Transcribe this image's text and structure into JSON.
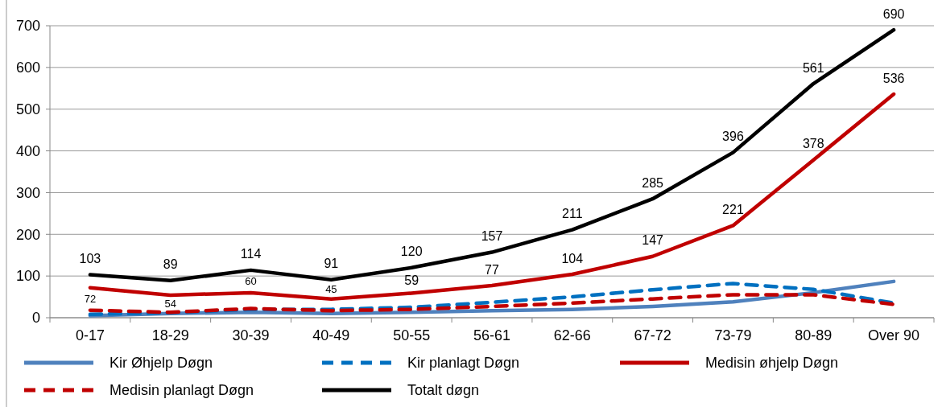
{
  "chart_data": {
    "type": "line",
    "categories": [
      "0-17",
      "18-29",
      "30-39",
      "40-49",
      "50-55",
      "56-61",
      "62-66",
      "67-72",
      "73-79",
      "80-89",
      "Over 90"
    ],
    "ylim": [
      0,
      700
    ],
    "yticks": [
      0,
      100,
      200,
      300,
      400,
      500,
      600,
      700
    ],
    "grid": "y",
    "legend": "bottom",
    "series": [
      {
        "name": "Kir Øhjelp Døgn",
        "color": "#4f81bd",
        "line_style": "solid",
        "values": [
          5,
          10,
          13,
          10,
          13,
          17,
          20,
          27,
          38,
          60,
          87
        ]
      },
      {
        "name": "Kir planlagt Døgn",
        "color": "#0070c0",
        "line_style": "dashed",
        "values": [
          8,
          12,
          20,
          20,
          25,
          37,
          50,
          67,
          82,
          68,
          35
        ]
      },
      {
        "name": "Medisin øhjelp Døgn",
        "color": "#c00000",
        "line_style": "solid",
        "values": [
          72,
          54,
          60,
          45,
          59,
          77,
          104,
          147,
          221,
          378,
          536
        ],
        "value_labels": [
          "72",
          "54",
          "60",
          "45",
          "59",
          "77",
          "104",
          "147",
          "221",
          "378",
          "536"
        ]
      },
      {
        "name": "Medisin planlagt Døgn",
        "color": "#c00000",
        "line_style": "dashed",
        "values": [
          18,
          13,
          22,
          17,
          20,
          27,
          35,
          45,
          55,
          55,
          32
        ]
      },
      {
        "name": "Totalt døgn",
        "color": "#000000",
        "line_style": "solid",
        "values": [
          103,
          89,
          114,
          91,
          120,
          157,
          211,
          285,
          396,
          561,
          690
        ],
        "value_labels": [
          "103",
          "89",
          "114",
          "91",
          "120",
          "157",
          "211",
          "285",
          "396",
          "561",
          "690"
        ]
      }
    ]
  }
}
